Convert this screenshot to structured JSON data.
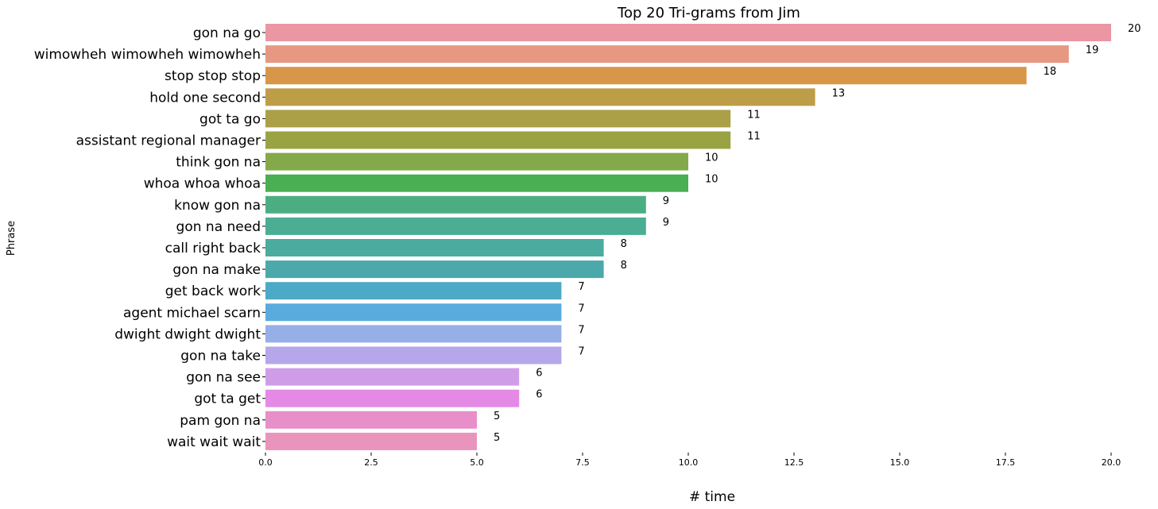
{
  "chart_data": {
    "type": "bar",
    "orientation": "horizontal",
    "title": "Top 20 Tri-grams from Jim",
    "xlabel": "# time",
    "ylabel": "Phrase",
    "xlim": [
      0,
      20
    ],
    "xticks": [
      "0.0",
      "2.5",
      "5.0",
      "7.5",
      "10.0",
      "12.5",
      "15.0",
      "17.5",
      "20.0"
    ],
    "grid": false,
    "legend": "none",
    "categories": [
      "gon na go",
      "wimowheh wimowheh wimowheh",
      "stop stop stop",
      "hold one second",
      "got ta go",
      "assistant regional manager",
      "think gon na",
      "whoa whoa whoa",
      "know gon na",
      "gon na need",
      "call right back",
      "gon na make",
      "get back work",
      "agent michael scarn",
      "dwight dwight dwight",
      "gon na take",
      "gon na see",
      "got ta get",
      "pam gon na",
      "wait wait wait"
    ],
    "values": [
      20,
      19,
      18,
      13,
      11,
      11,
      10,
      10,
      9,
      9,
      8,
      8,
      7,
      7,
      7,
      7,
      6,
      6,
      5,
      5
    ],
    "value_labels": [
      "20",
      "19",
      "18",
      "13",
      "11",
      "11",
      "10",
      "10",
      "9",
      "9",
      "8",
      "8",
      "7",
      "7",
      "7",
      "7",
      "6",
      "6",
      "5",
      "5"
    ],
    "colors": [
      "#ea96a3",
      "#e69882",
      "#d89649",
      "#bd9d48",
      "#aba047",
      "#9aa344",
      "#84a94a",
      "#4aae53",
      "#4bae82",
      "#4bad93",
      "#4bab9f",
      "#4ba9ab",
      "#4daac6",
      "#59abde",
      "#97afe8",
      "#b6a7ea",
      "#cf9de8",
      "#e48ae6",
      "#e88fc9",
      "#e994bd"
    ]
  }
}
